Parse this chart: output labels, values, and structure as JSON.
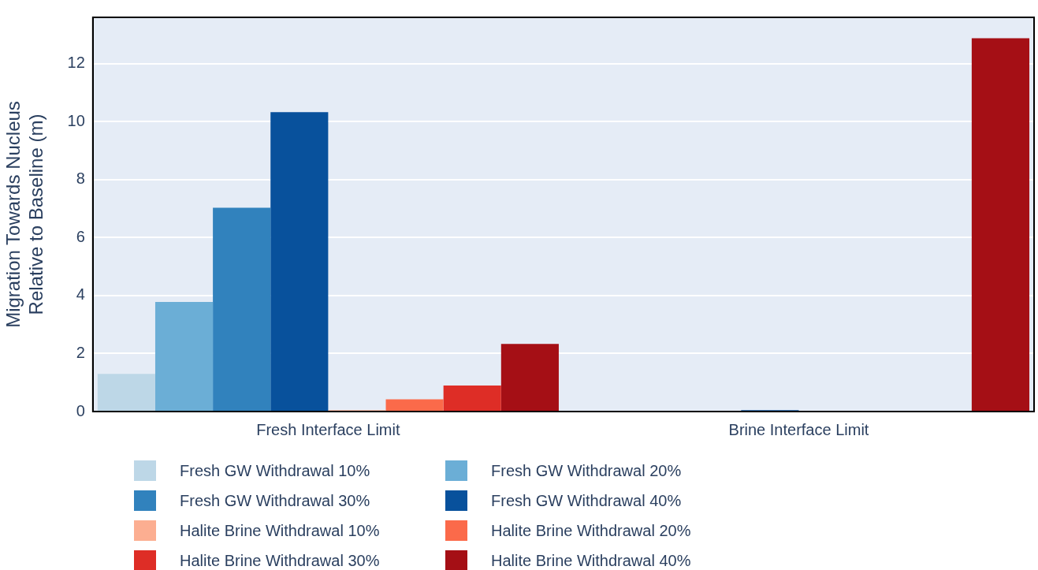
{
  "chart_data": {
    "type": "bar",
    "categories": [
      "Fresh Interface Limit",
      "Brine Interface Limit"
    ],
    "ylabel": "Migration Towards Nucleus\nRelative to Baseline (m)",
    "series": [
      {
        "name": "Fresh GW Withdrawal 10%",
        "color": "#bdd7e7",
        "values": [
          1.3,
          0.02
        ]
      },
      {
        "name": "Fresh GW Withdrawal 20%",
        "color": "#6baed6",
        "values": [
          3.78,
          null
        ]
      },
      {
        "name": "Fresh GW Withdrawal 30%",
        "color": "#3182bd",
        "values": [
          7.03,
          null
        ]
      },
      {
        "name": "Fresh GW Withdrawal 40%",
        "color": "#08519c",
        "values": [
          10.33,
          0.05
        ]
      },
      {
        "name": "Halite Brine Withdrawal 10%",
        "color": "#fcae91",
        "values": [
          0.05,
          null
        ]
      },
      {
        "name": "Halite Brine Withdrawal 20%",
        "color": "#fb6a4a",
        "values": [
          0.42,
          null
        ]
      },
      {
        "name": "Halite Brine Withdrawal 30%",
        "color": "#de2d26",
        "values": [
          0.9,
          null
        ]
      },
      {
        "name": "Halite Brine Withdrawal 40%",
        "color": "#a50f15",
        "values": [
          2.33,
          12.88
        ]
      }
    ],
    "ylim": [
      0,
      13.6
    ],
    "yticks": [
      0,
      2,
      4,
      6,
      8,
      10,
      12
    ],
    "grid": "y",
    "legend": "bottom"
  }
}
